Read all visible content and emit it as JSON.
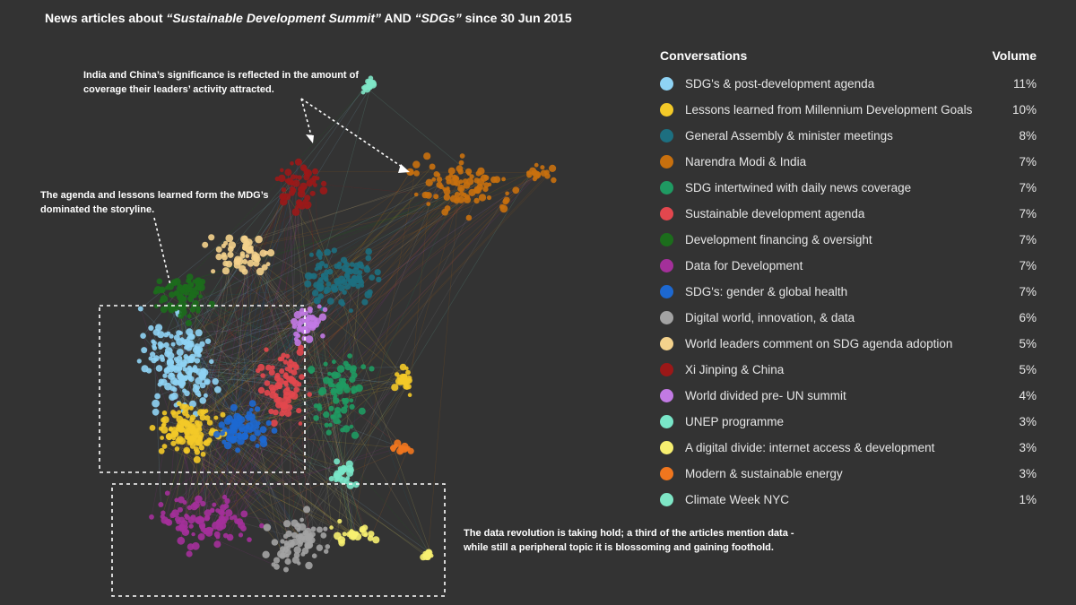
{
  "title": {
    "prefix": "News articles about ",
    "term1": "“Sustainable Development Summit”",
    "mid": " AND ",
    "term2": "“SDGs”",
    "suffix": " since 30 Jun 2015"
  },
  "annotations": {
    "india_china": [
      "India and China’s significance is reflected in the amount of",
      "coverage their leaders’ activity attracted."
    ],
    "agenda": [
      "The agenda and lessons learned form the MDG’s",
      "dominated the storyline."
    ],
    "data_revolution": [
      "The data revolution is taking hold; a third of the articles mention data -",
      "while still a peripheral topic it is blossoming and gaining foothold."
    ]
  },
  "legend": {
    "header_label": "Conversations",
    "header_volume": "Volume",
    "items": [
      {
        "label": "SDG's & post-development agenda",
        "volume": "11%",
        "color": "#8fd3f4"
      },
      {
        "label": "Lessons learned from Millennium Development Goals",
        "volume": "10%",
        "color": "#f3c928"
      },
      {
        "label": "General Assembly & minister meetings",
        "volume": "8%",
        "color": "#1d6f80"
      },
      {
        "label": "Narendra Modi & India",
        "volume": "7%",
        "color": "#c8700e"
      },
      {
        "label": "SDG intertwined with daily news coverage",
        "volume": "7%",
        "color": "#1f9a62"
      },
      {
        "label": "Sustainable development agenda",
        "volume": "7%",
        "color": "#e2474e"
      },
      {
        "label": "Development financing & oversight",
        "volume": "7%",
        "color": "#1c6d1c"
      },
      {
        "label": "Data for Development",
        "volume": "7%",
        "color": "#a4309a"
      },
      {
        "label": "SDG's: gender & global health",
        "volume": "7%",
        "color": "#1d68d0"
      },
      {
        "label": "Digital world, innovation, & data",
        "volume": "6%",
        "color": "#a3a3a3"
      },
      {
        "label": "World leaders comment on SDG agenda adoption",
        "volume": "5%",
        "color": "#f4d28c"
      },
      {
        "label": "Xi Jinping & China",
        "volume": "5%",
        "color": "#9b1818"
      },
      {
        "label": "World divided pre- UN summit",
        "volume": "4%",
        "color": "#c27ae4"
      },
      {
        "label": "UNEP programme",
        "volume": "3%",
        "color": "#79e6c8"
      },
      {
        "label": "A digital divide: internet access & development",
        "volume": "3%",
        "color": "#f7ef70"
      },
      {
        "label": "Modern & sustainable energy",
        "volume": "3%",
        "color": "#f0761e"
      },
      {
        "label": "Climate Week NYC",
        "volume": "1%",
        "color": "#7fe6c6"
      }
    ]
  }
}
